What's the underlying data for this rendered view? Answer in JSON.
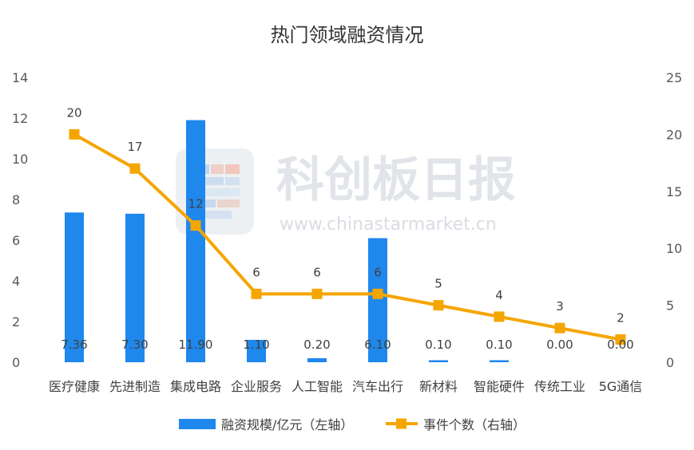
{
  "chart_data": {
    "type": "bar",
    "title": "热门领域融资情况",
    "categories": [
      "医疗健康",
      "先进制造",
      "集成电路",
      "企业服务",
      "人工智能",
      "汽车出行",
      "新材料",
      "智能硬件",
      "传统工业",
      "5G通信"
    ],
    "series": [
      {
        "name": "融资规模/亿元（左轴）",
        "type": "bar",
        "axis": "left",
        "values": [
          7.36,
          7.3,
          11.9,
          1.1,
          0.2,
          6.1,
          0.1,
          0.1,
          0.0,
          0.0
        ],
        "labels": [
          "7.36",
          "7.30",
          "11.90",
          "1.10",
          "0.20",
          "6.10",
          "0.10",
          "0.10",
          "0.00",
          "0.00"
        ],
        "color": "#1f88ed"
      },
      {
        "name": "事件个数（右轴）",
        "type": "line",
        "axis": "right",
        "values": [
          20,
          17,
          12,
          6,
          6,
          6,
          5,
          4,
          3,
          2
        ],
        "labels": [
          "20",
          "17",
          "12",
          "6",
          "6",
          "6",
          "5",
          "4",
          "3",
          "2"
        ],
        "color": "#f5a500"
      }
    ],
    "y_left": {
      "ylim": [
        0,
        14
      ],
      "ticks": [
        "0",
        "2",
        "4",
        "6",
        "8",
        "10",
        "12",
        "14"
      ]
    },
    "y_right": {
      "ylim": [
        0,
        25
      ],
      "ticks": [
        "0",
        "5",
        "10",
        "15",
        "20",
        "25"
      ]
    },
    "grid": false,
    "legend_position": "bottom"
  },
  "watermark": {
    "text": "科创板日报",
    "url": "www.chinastarmarket.cn"
  }
}
